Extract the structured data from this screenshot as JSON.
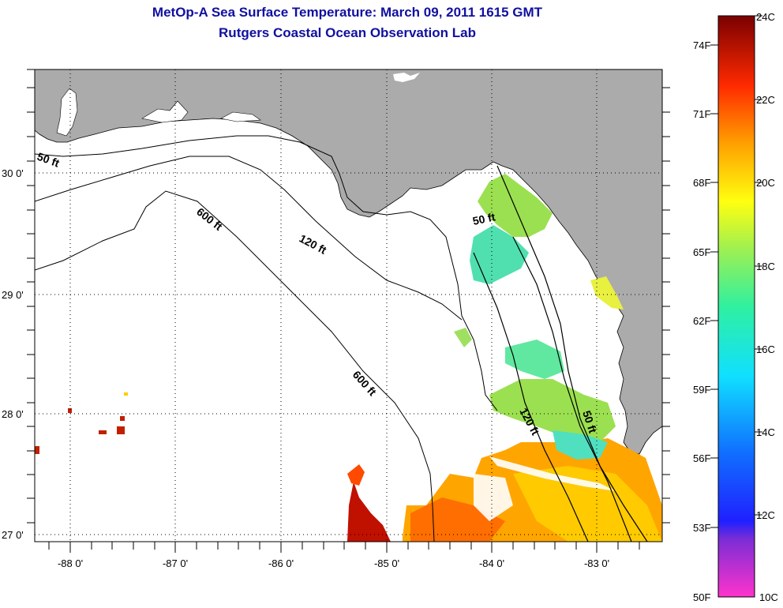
{
  "title": "MetOp-A Sea Surface Temperature:  March 09, 2011 1615 GMT",
  "subtitle": "Rutgers Coastal Ocean Observation Lab",
  "map": {
    "lat_ticks": [
      "30 0'",
      "29 0'",
      "28 0'",
      "27 0'"
    ],
    "lon_ticks": [
      "-88 0'",
      "-87 0'",
      "-86 0'",
      "-85 0'",
      "-84 0'",
      "-83 0'"
    ],
    "contour_labels": [
      "50 ft",
      "600 ft",
      "120 ft",
      "50 ft",
      "600 ft",
      "120 ft",
      "50 ft"
    ]
  },
  "colorbar": {
    "fahrenheit_labels": [
      "74F",
      "71F",
      "68F",
      "65F",
      "62F",
      "59F",
      "56F",
      "53F",
      "50F"
    ],
    "celsius_labels": [
      "24C",
      "22C",
      "20C",
      "18C",
      "16C",
      "14C",
      "12C",
      "10C"
    ]
  },
  "colors": {
    "land": "#ababab",
    "ocean": "#ffffff",
    "title": "#1010a0"
  }
}
